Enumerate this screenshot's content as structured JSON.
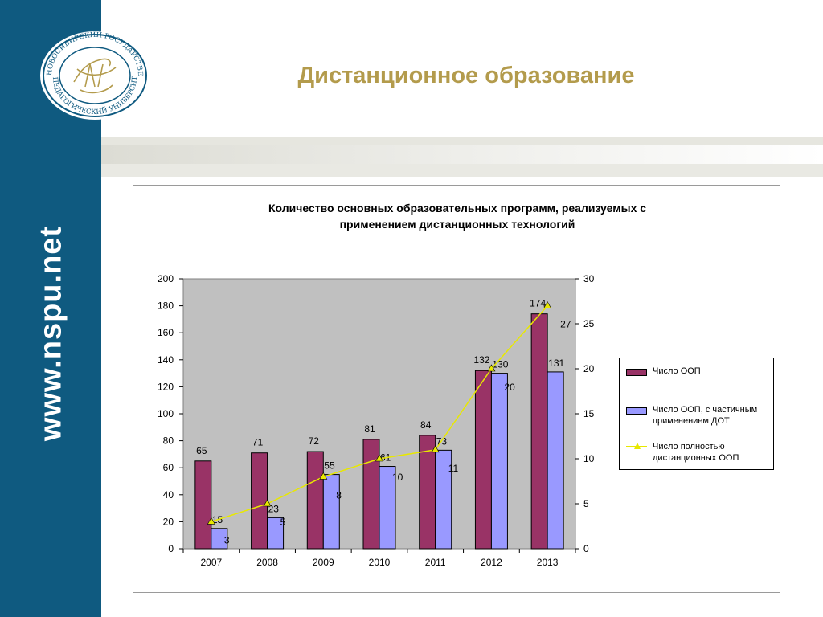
{
  "slide": {
    "title": "Дистанционное образование",
    "site_url": "www.nspu.net",
    "logo_text_top": "НОВОСИБИРСКИЙ ГОСУДАРСТВЕННЫЙ",
    "logo_text_bottom": "ПЕДАГОГИЧЕСКИЙ УНИВЕРСИТЕТ"
  },
  "colors": {
    "sidebar": "#0f5a80",
    "title": "#b39b4c",
    "bar_primary": "#993366",
    "bar_secondary": "#9999ff",
    "line": "#e8e800",
    "plot_bg": "#c0c0c0"
  },
  "chart_data": {
    "type": "bar",
    "title_lines": [
      "Количество основных образовательных программ, реализуемых с",
      "применением дистанционных технологий"
    ],
    "categories": [
      "2007",
      "2008",
      "2009",
      "2010",
      "2011",
      "2012",
      "2013"
    ],
    "series": [
      {
        "name": "Число ООП",
        "type": "bar",
        "axis": "left",
        "color": "#993366",
        "values": [
          65,
          71,
          72,
          81,
          84,
          132,
          174
        ]
      },
      {
        "name": "Число ООП, с частичным применением ДОТ",
        "type": "bar",
        "axis": "left",
        "color": "#9999ff",
        "values": [
          15,
          23,
          55,
          61,
          73,
          130,
          131
        ]
      },
      {
        "name": "Число полностью дистанционных ООП",
        "type": "line",
        "axis": "right",
        "color": "#e8e800",
        "values": [
          3,
          5,
          8,
          10,
          11,
          20,
          27
        ]
      }
    ],
    "y_left": {
      "min": 0,
      "max": 200,
      "step": 20
    },
    "y_right": {
      "min": 0,
      "max": 30,
      "step": 5
    },
    "legend_position": "right",
    "grid": false
  }
}
